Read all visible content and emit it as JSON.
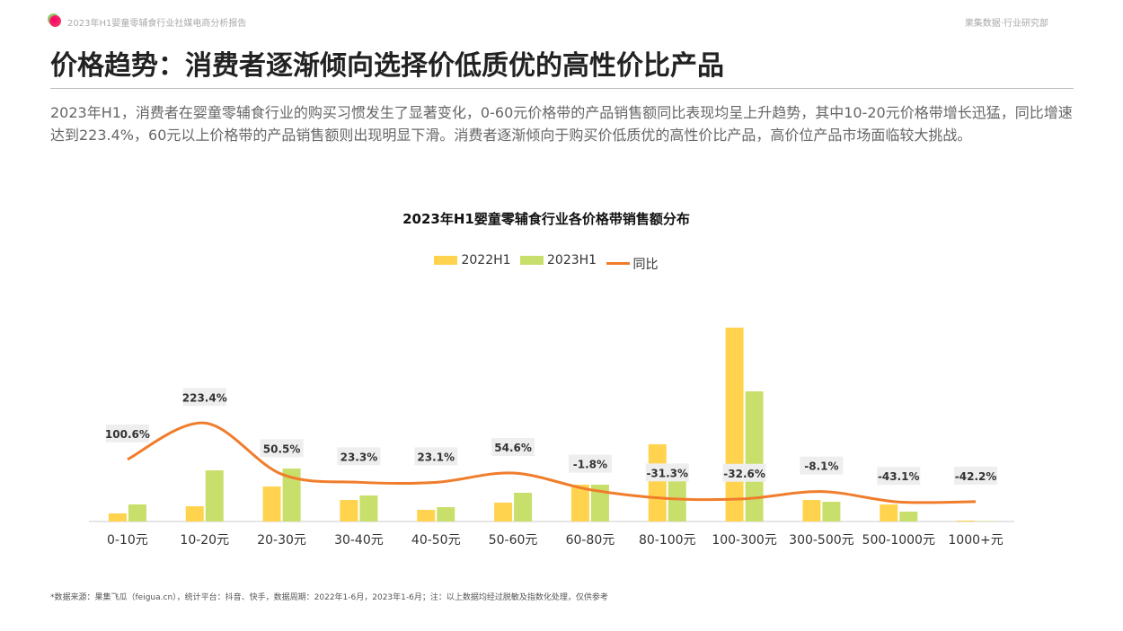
{
  "header": {
    "report_title": "2023年H1婴童零辅食行业社媒电商分析报告",
    "org": "果集数据·行业研究部"
  },
  "page_title": "价格趋势：消费者逐渐倾向选择价低质优的高性价比产品",
  "intro": "2023年H1，消费者在婴童零辅食行业的购买习惯发生了显著变化，0-60元价格带的产品销售额同比表现均呈上升趋势，其中10-20元价格带增长迅猛，同比增速达到223.4%，60元以上价格带的产品销售额则出现明显下滑。消费者逐渐倾向于购买价低质优的高性价比产品，高价位产品市场面临较大挑战。",
  "source": "*数据来源：果集飞瓜（feigua.cn），统计平台：抖音、快手，数据周期：2022年1-6月，2023年1-6月；注：以上数据均经过脱敏及指数化处理，仅供参考",
  "chart_data": {
    "type": "bar",
    "title": "2023年H1婴童零辅食行业各价格带销售额分布",
    "categories": [
      "0-10元",
      "10-20元",
      "20-30元",
      "30-40元",
      "40-50元",
      "50-60元",
      "60-80元",
      "80-100元",
      "100-300元",
      "300-500元",
      "500-1000元",
      "1000+元"
    ],
    "series": [
      {
        "name": "2022H1",
        "color": "#FFD34E",
        "values": [
          9,
          17,
          39,
          24,
          13,
          21,
          41,
          86,
          216,
          24,
          19,
          1
        ]
      },
      {
        "name": "2023H1",
        "color": "#C8DF6B",
        "values": [
          19,
          57,
          59,
          29,
          16,
          32,
          41,
          58,
          145,
          22,
          11,
          0.5
        ]
      },
      {
        "name": "同比",
        "type": "line",
        "color": "#F07D2C",
        "values": [
          100.6,
          223.4,
          50.5,
          23.3,
          23.1,
          54.6,
          -1.8,
          -31.3,
          -32.6,
          -8.1,
          -43.1,
          -42.2
        ],
        "labels": [
          "100.6%",
          "223.4%",
          "50.5%",
          "23.3%",
          "23.1%",
          "54.6%",
          "-1.8%",
          "-31.3%",
          "-32.6%",
          "-8.1%",
          "-43.1%",
          "-42.2%"
        ]
      }
    ],
    "legend_position": "top-center",
    "grid": false
  }
}
